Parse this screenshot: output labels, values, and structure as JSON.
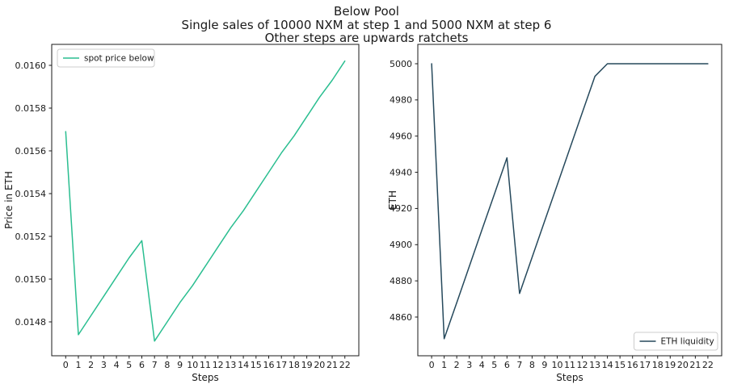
{
  "figure": {
    "title_lines": [
      "Below Pool",
      "Single sales of 10000 NXM at step 1 and 5000 NXM at step 6",
      "Other steps are upwards ratchets"
    ],
    "background": "#ffffff",
    "text_color": "#1a1a1a"
  },
  "chart_data": [
    {
      "type": "line",
      "xlabel": "Steps",
      "ylabel": "Price in ETH",
      "grid": false,
      "x": [
        0,
        1,
        2,
        3,
        4,
        5,
        6,
        7,
        8,
        9,
        10,
        11,
        12,
        13,
        14,
        15,
        16,
        17,
        18,
        19,
        20,
        21,
        22
      ],
      "xtick_labels": [
        "0",
        "1",
        "2",
        "3",
        "4",
        "5",
        "6",
        "7",
        "8",
        "9",
        "10",
        "11",
        "12",
        "13",
        "14",
        "15",
        "16",
        "17",
        "18",
        "19",
        "20",
        "21",
        "22"
      ],
      "xlim": [
        -1.1,
        23.1
      ],
      "ylim": [
        0.0146415,
        0.0160981
      ],
      "yticks": [
        0.0148,
        0.015,
        0.0152,
        0.0154,
        0.0156,
        0.0158,
        0.016
      ],
      "ytick_labels": [
        "0.0148",
        "0.0150",
        "0.0152",
        "0.0154",
        "0.0156",
        "0.0158",
        "0.0160"
      ],
      "legend_position": "upper-left",
      "series": [
        {
          "name": "spot price below",
          "color": "#2abe90",
          "values": [
            0.01569,
            0.01474,
            0.01483,
            0.01492,
            0.01501,
            0.0151,
            0.01518,
            0.01471,
            0.0148,
            0.01489,
            0.01497,
            0.01506,
            0.01515,
            0.01524,
            0.01532,
            0.01541,
            0.0155,
            0.01559,
            0.01567,
            0.01576,
            0.01585,
            0.01593,
            0.01602
          ]
        }
      ]
    },
    {
      "type": "line",
      "xlabel": "Steps",
      "ylabel": "ETH",
      "grid": false,
      "x": [
        0,
        1,
        2,
        3,
        4,
        5,
        6,
        7,
        8,
        9,
        10,
        11,
        12,
        13,
        14,
        15,
        16,
        17,
        18,
        19,
        20,
        21,
        22
      ],
      "xtick_labels": [
        "0",
        "1",
        "2",
        "3",
        "4",
        "5",
        "6",
        "7",
        "8",
        "9",
        "10",
        "11",
        "12",
        "13",
        "14",
        "15",
        "16",
        "17",
        "18",
        "19",
        "20",
        "21",
        "22"
      ],
      "xlim": [
        -1.1,
        23.1
      ],
      "ylim": [
        4838.6,
        5010.7
      ],
      "yticks": [
        4860,
        4880,
        4900,
        4920,
        4940,
        4960,
        4980,
        5000
      ],
      "ytick_labels": [
        "4860",
        "4880",
        "4900",
        "4920",
        "4940",
        "4960",
        "4980",
        "5000"
      ],
      "legend_position": "lower-right",
      "series": [
        {
          "name": "ETH liquidity",
          "color": "#26495c",
          "values": [
            5000,
            4848,
            4868,
            4888,
            4908,
            4928,
            4948,
            4873,
            4893,
            4913,
            4933,
            4953,
            4973,
            4993,
            5000,
            5000,
            5000,
            5000,
            5000,
            5000,
            5000,
            5000,
            5000
          ]
        }
      ]
    }
  ]
}
